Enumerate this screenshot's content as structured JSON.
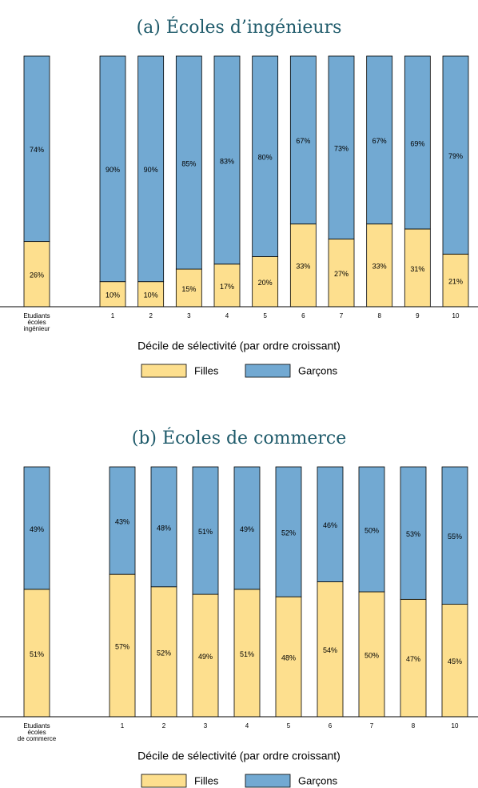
{
  "chart_data": [
    {
      "type": "stacked_bar",
      "title": "(a) Écoles d’ingénieurs",
      "categories": [
        [
          "Etudiants",
          "écoles",
          "ingénieur"
        ],
        "1",
        "2",
        "3",
        "4",
        "5",
        "6",
        "7",
        "8",
        "9",
        "10"
      ],
      "series": [
        {
          "name": "Filles",
          "color": "#fddf8e",
          "values": [
            26,
            10,
            10,
            15,
            17,
            20,
            33,
            27,
            33,
            31,
            21
          ],
          "value_labels": [
            "26%",
            "10%",
            "10%",
            "15%",
            "17%",
            "20%",
            "33%",
            "27%",
            "33%",
            "31%",
            "21%"
          ]
        },
        {
          "name": "Garçons",
          "color": "#72a9d2",
          "values": [
            74,
            90,
            90,
            85,
            83,
            80,
            67,
            73,
            67,
            69,
            79
          ],
          "value_labels": [
            "74%",
            "90%",
            "90%",
            "85%",
            "83%",
            "80%",
            "67%",
            "73%",
            "67%",
            "69%",
            "79%"
          ]
        }
      ],
      "x_label": "Décile de sélectivité (par ordre croissant)",
      "ylim": [
        0,
        100
      ]
    },
    {
      "type": "stacked_bar",
      "title": "(b) Écoles de commerce",
      "categories": [
        [
          "Etudiants",
          "écoles",
          "de commerce"
        ],
        "1",
        "2",
        "3",
        "4",
        "5",
        "6",
        "7",
        "8",
        "10"
      ],
      "series": [
        {
          "name": "Filles",
          "color": "#fddf8e",
          "values": [
            51,
            57,
            52,
            49,
            51,
            48,
            54,
            50,
            47,
            45
          ],
          "value_labels": [
            "51%",
            "57%",
            "52%",
            "49%",
            "51%",
            "48%",
            "54%",
            "50%",
            "47%",
            "45%"
          ]
        },
        {
          "name": "Garçons",
          "color": "#72a9d2",
          "values": [
            49,
            43,
            48,
            51,
            49,
            52,
            46,
            50,
            53,
            55
          ],
          "value_labels": [
            "49%",
            "43%",
            "48%",
            "51%",
            "49%",
            "52%",
            "46%",
            "50%",
            "53%",
            "55%"
          ]
        }
      ],
      "x_label": "Décile de sélectivité (par ordre croissant)",
      "ylim": [
        0,
        100
      ]
    }
  ]
}
